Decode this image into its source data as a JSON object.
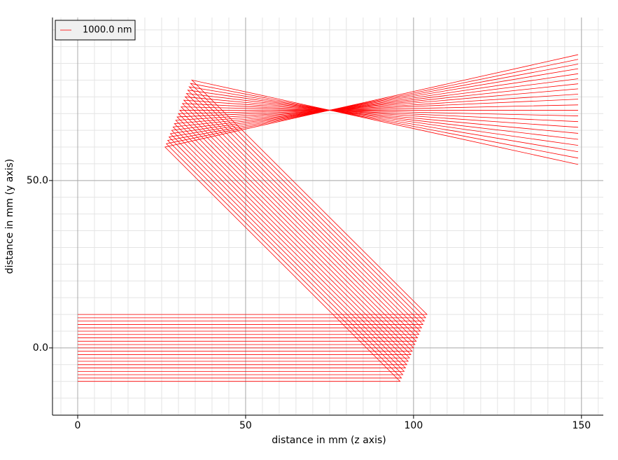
{
  "chart_data": {
    "type": "line",
    "x_label": "distance in mm (z axis)",
    "y_label": "distance in mm (y axis)",
    "xlim": [
      -7.5,
      156.5
    ],
    "ylim": [
      -20.1,
      98.7
    ],
    "xticks": [
      0,
      50,
      100,
      150
    ],
    "yticks": [
      {
        "value": 0,
        "label": "0.0"
      },
      {
        "value": 50,
        "label": "50.0"
      }
    ],
    "grid": true,
    "minor_grid_step": 5,
    "legend": "upper left",
    "series": [
      {
        "name": "1000.0 nm",
        "color": "#ff0000",
        "rays": [
          {
            "x": [
              0,
              96,
              26,
              149
            ],
            "y": [
              -10,
              -10,
              60,
              87.6
            ]
          },
          {
            "x": [
              0,
              96.4,
              26.4,
              149
            ],
            "y": [
              -9,
              -9,
              61,
              86.2
            ]
          },
          {
            "x": [
              0,
              96.8,
              26.8,
              149
            ],
            "y": [
              -8,
              -8,
              62,
              84.8
            ]
          },
          {
            "x": [
              0,
              97.2,
              27.2,
              149
            ],
            "y": [
              -7,
              -7,
              63,
              83.4
            ]
          },
          {
            "x": [
              0,
              97.6,
              27.6,
              149
            ],
            "y": [
              -6,
              -6,
              64,
              81.9
            ]
          },
          {
            "x": [
              0,
              98,
              28,
              149
            ],
            "y": [
              -5,
              -5,
              65,
              80.4
            ]
          },
          {
            "x": [
              0,
              98.4,
              28.4,
              149
            ],
            "y": [
              -4,
              -4,
              66,
              78.9
            ]
          },
          {
            "x": [
              0,
              98.8,
              28.8,
              149
            ],
            "y": [
              -3,
              -3,
              67,
              77.4
            ]
          },
          {
            "x": [
              0,
              99.2,
              29.2,
              149
            ],
            "y": [
              -2,
              -2,
              68,
              75.8
            ]
          },
          {
            "x": [
              0,
              99.6,
              29.6,
              149
            ],
            "y": [
              -1,
              -1,
              69,
              74.3
            ]
          },
          {
            "x": [
              0,
              100,
              30,
              149
            ],
            "y": [
              0,
              0,
              70,
              72.6
            ]
          },
          {
            "x": [
              0,
              100.4,
              30.4,
              149
            ],
            "y": [
              1,
              1,
              71,
              71
            ]
          },
          {
            "x": [
              0,
              100.8,
              30.8,
              149
            ],
            "y": [
              2,
              2,
              72,
              69.3
            ]
          },
          {
            "x": [
              0,
              101.2,
              31.2,
              149
            ],
            "y": [
              3,
              3,
              73,
              67.6
            ]
          },
          {
            "x": [
              0,
              101.6,
              31.6,
              149
            ],
            "y": [
              4,
              4,
              74,
              65.9
            ]
          },
          {
            "x": [
              0,
              102,
              32,
              149
            ],
            "y": [
              5,
              5,
              75,
              64.1
            ]
          },
          {
            "x": [
              0,
              102.4,
              32.4,
              149
            ],
            "y": [
              6,
              6,
              76,
              62.3
            ]
          },
          {
            "x": [
              0,
              102.8,
              32.8,
              149
            ],
            "y": [
              7,
              7,
              77,
              60.5
            ]
          },
          {
            "x": [
              0,
              103.2,
              33.2,
              149
            ],
            "y": [
              8,
              8,
              78,
              58.6
            ]
          },
          {
            "x": [
              0,
              103.6,
              33.6,
              149
            ],
            "y": [
              9,
              9,
              79,
              56.7
            ]
          },
          {
            "x": [
              0,
              104,
              34,
              149
            ],
            "y": [
              10,
              10,
              80,
              54.8
            ]
          }
        ]
      }
    ]
  }
}
